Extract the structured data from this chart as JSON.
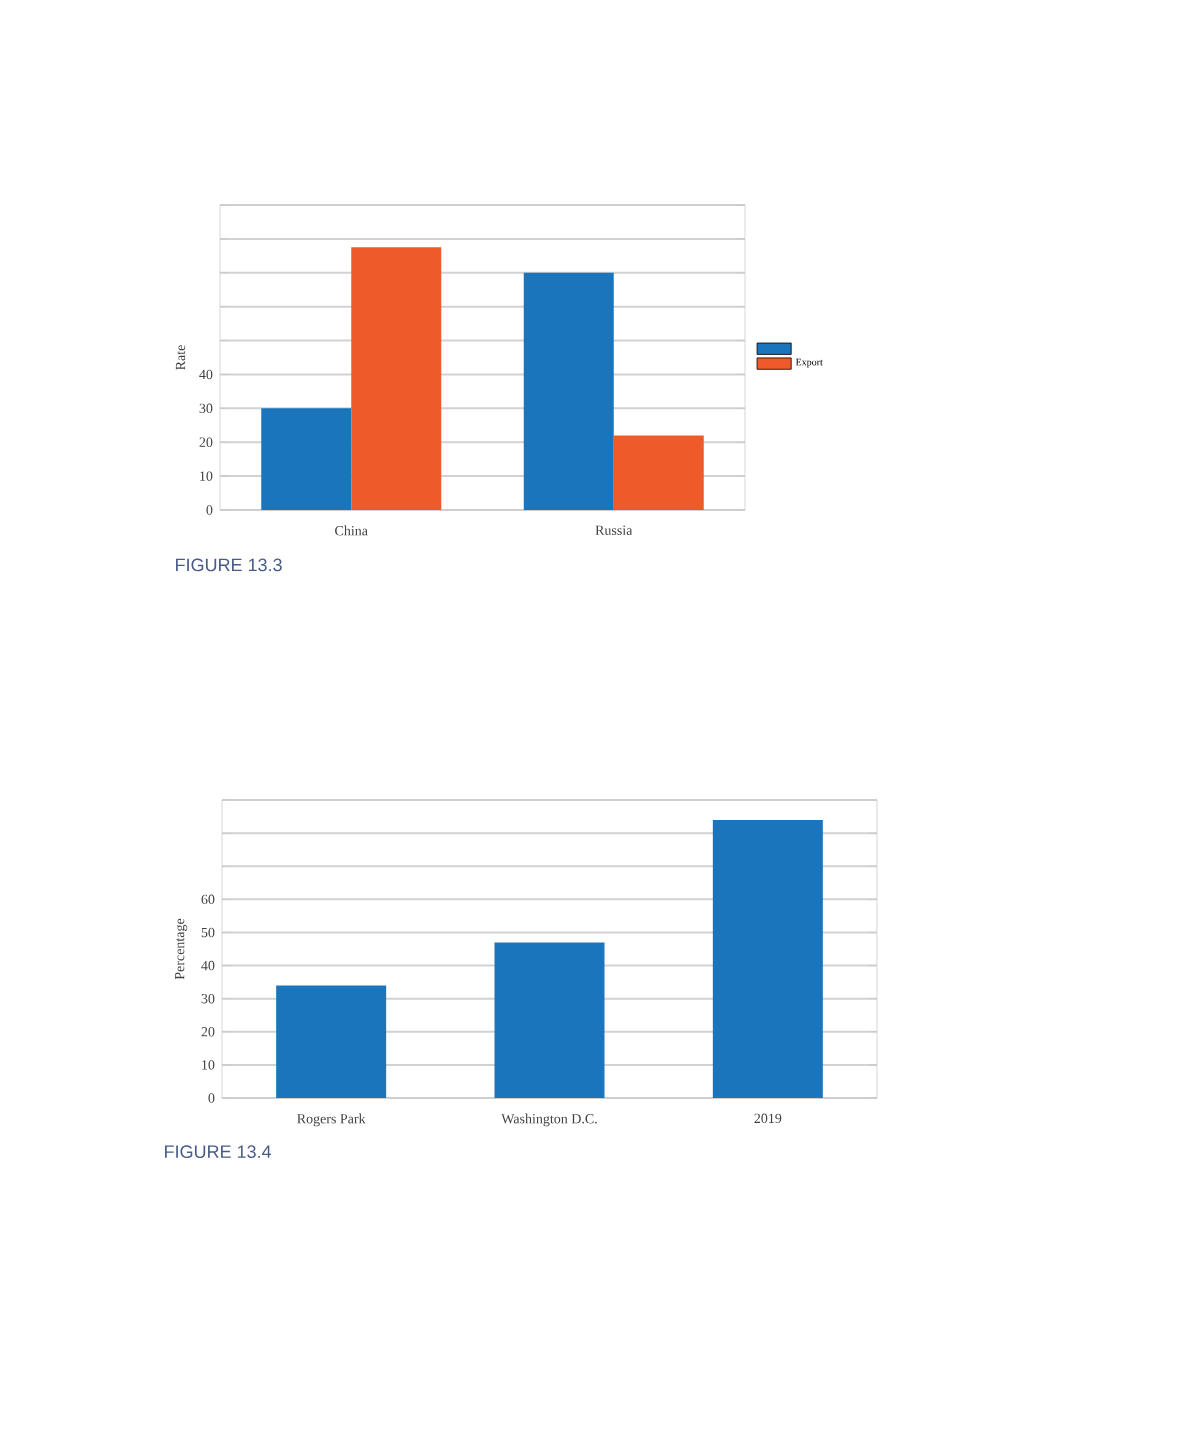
{
  "chart_data": [
    {
      "type": "bar",
      "ylabel": "Rate",
      "categories": [
        "China",
        "Russia"
      ],
      "series": [
        {
          "color": "#1b75bc",
          "values": [
            30,
            70
          ]
        },
        {
          "name": "Export",
          "color": "#ef5a2b",
          "values": [
            77.5,
            22
          ]
        }
      ],
      "ylim": [
        0,
        90
      ],
      "yticks": [
        0,
        10,
        20,
        30,
        40,
        {
          "value": 50,
          "label": null
        },
        {
          "value": 60,
          "label": null
        },
        {
          "value": 70,
          "label": null
        },
        {
          "value": 80,
          "label": null
        },
        {
          "value": 90,
          "label": null
        }
      ],
      "grid": "y",
      "legend": "right",
      "annotations": [
        "FIGURE 13.3"
      ]
    },
    {
      "type": "bar",
      "ylabel": "Percentage",
      "categories": [
        "Rogers Park",
        "Washington D.C.",
        "2019"
      ],
      "series": [
        {
          "color": "#1b75bc",
          "values": [
            34,
            47,
            84
          ]
        }
      ],
      "ylim": [
        0,
        90
      ],
      "yticks": [
        0,
        10,
        20,
        30,
        40,
        50,
        60,
        {
          "value": 70,
          "label": null
        },
        {
          "value": 80,
          "label": null
        },
        {
          "value": 90,
          "label": null
        }
      ],
      "grid": "y",
      "annotations": [
        "FIGURE 13.4"
      ]
    }
  ]
}
